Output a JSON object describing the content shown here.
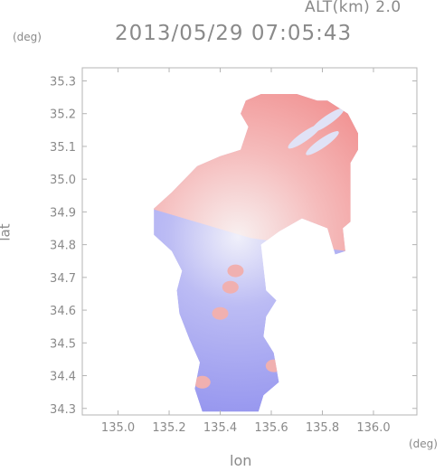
{
  "header": {
    "altitude_label": "ALT(km) 2.0",
    "timestamp": "2013/05/29 07:05:43"
  },
  "chart_data": {
    "type": "heatmap",
    "title": "2013/05/29 07:05:43",
    "subtitle": "ALT(km) 2.0",
    "xlabel": "lon",
    "ylabel": "lat",
    "x_unit": "(deg)",
    "y_unit": "(deg)",
    "xlim": [
      134.86,
      136.17
    ],
    "ylim": [
      34.28,
      35.34
    ],
    "x_ticks": [
      135.0,
      135.2,
      135.4,
      135.6,
      135.8,
      136.0
    ],
    "x_tick_labels": [
      "135.0",
      "135.2",
      "135.4",
      "135.6",
      "135.8",
      "136.0"
    ],
    "y_ticks": [
      34.3,
      34.4,
      34.5,
      34.6,
      34.7,
      34.8,
      34.9,
      35.0,
      35.1,
      35.2,
      35.3
    ],
    "y_tick_labels": [
      "34.3",
      "34.4",
      "34.5",
      "34.6",
      "34.7",
      "34.8",
      "34.9",
      "35.0",
      "35.1",
      "35.2",
      "35.3"
    ],
    "colormap": {
      "negative": "#8c8cf0",
      "zero": "#f4f4f4",
      "positive": "#f08c8c"
    },
    "radar_center": {
      "lon": 135.52,
      "lat": 34.82
    },
    "coverage_outline": [
      [
        135.5,
        35.24
      ],
      [
        135.56,
        35.26
      ],
      [
        135.7,
        35.26
      ],
      [
        135.78,
        35.24
      ],
      [
        135.82,
        35.24
      ],
      [
        135.9,
        35.2
      ],
      [
        135.94,
        35.14
      ],
      [
        135.94,
        35.09
      ],
      [
        135.91,
        35.05
      ],
      [
        135.91,
        34.87
      ],
      [
        135.88,
        34.85
      ],
      [
        135.89,
        34.78
      ],
      [
        135.85,
        34.77
      ],
      [
        135.82,
        34.85
      ],
      [
        135.72,
        34.88
      ],
      [
        135.63,
        34.84
      ],
      [
        135.56,
        34.8
      ],
      [
        135.58,
        34.66
      ],
      [
        135.62,
        34.63
      ],
      [
        135.58,
        34.58
      ],
      [
        135.57,
        34.52
      ],
      [
        135.61,
        34.47
      ],
      [
        135.63,
        34.38
      ],
      [
        135.57,
        34.34
      ],
      [
        135.55,
        34.29
      ],
      [
        135.33,
        34.29
      ],
      [
        135.3,
        34.36
      ],
      [
        135.32,
        34.44
      ],
      [
        135.28,
        34.51
      ],
      [
        135.24,
        34.59
      ],
      [
        135.23,
        34.66
      ],
      [
        135.25,
        34.72
      ],
      [
        135.21,
        34.78
      ],
      [
        135.14,
        34.83
      ],
      [
        135.14,
        34.91
      ],
      [
        135.21,
        34.96
      ],
      [
        135.26,
        35.0
      ],
      [
        135.31,
        35.04
      ],
      [
        135.4,
        35.07
      ],
      [
        135.48,
        35.09
      ],
      [
        135.51,
        35.16
      ],
      [
        135.48,
        35.2
      ]
    ],
    "features": [
      {
        "kind": "positive-cell",
        "lon": 135.46,
        "lat": 34.72
      },
      {
        "kind": "positive-cell",
        "lon": 135.44,
        "lat": 34.67
      },
      {
        "kind": "positive-cell",
        "lon": 135.4,
        "lat": 34.59
      },
      {
        "kind": "positive-cell",
        "lon": 135.33,
        "lat": 34.38
      },
      {
        "kind": "positive-cell",
        "lon": 135.61,
        "lat": 34.43
      },
      {
        "kind": "negative-streak",
        "lon": 135.73,
        "lat": 35.13
      },
      {
        "kind": "negative-streak",
        "lon": 135.8,
        "lat": 35.11
      },
      {
        "kind": "negative-streak",
        "lon": 135.82,
        "lat": 35.18
      }
    ]
  }
}
